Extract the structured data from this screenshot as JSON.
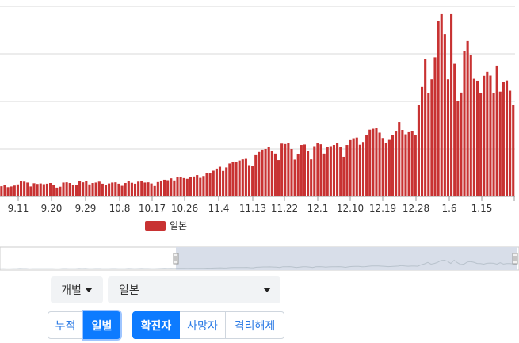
{
  "chart_data": {
    "type": "bar",
    "x_tick_labels": [
      "9.11",
      "9.20",
      "9.29",
      "10.8",
      "10.17",
      "10.26",
      "11.4",
      "11.13",
      "11.22",
      "12.1",
      "12.10",
      "12.19",
      "12.28",
      "1.6",
      "1.15"
    ],
    "series": [
      {
        "name": "일본",
        "color": "#c83232",
        "values": [
          440,
          480,
          400,
          430,
          470,
          520,
          650,
          640,
          600,
          430,
          570,
          540,
          560,
          530,
          550,
          580,
          500,
          380,
          420,
          600,
          610,
          580,
          490,
          500,
          650,
          610,
          660,
          520,
          580,
          600,
          640,
          550,
          500,
          560,
          600,
          610,
          550,
          460,
          580,
          650,
          590,
          550,
          640,
          670,
          600,
          610,
          560,
          450,
          620,
          680,
          720,
          700,
          780,
          690,
          840,
          830,
          790,
          760,
          840,
          860,
          920,
          800,
          880,
          1000,
          990,
          1110,
          1200,
          1280,
          1100,
          1250,
          1420,
          1480,
          1500,
          1550,
          1600,
          1620,
          1350,
          1320,
          1780,
          1920,
          2020,
          2050,
          2150,
          1950,
          1850,
          1570,
          2280,
          2260,
          2290,
          2050,
          1590,
          1830,
          2220,
          2240,
          1950,
          1600,
          2170,
          2300,
          2250,
          1850,
          2130,
          2170,
          2220,
          2300,
          2140,
          1710,
          2220,
          2430,
          2510,
          2540,
          2230,
          2350,
          2650,
          2880,
          2920,
          2960,
          2750,
          2520,
          2310,
          2440,
          2640,
          2800,
          3210,
          2870,
          2680,
          2770,
          2810,
          2640,
          3930,
          4720,
          5920,
          4470,
          5050,
          6000,
          7560,
          7860,
          7000,
          5050,
          7860,
          5720,
          4100,
          4480,
          6270,
          6700,
          6100,
          5070,
          4990,
          4450,
          5200,
          5370,
          5210,
          4470,
          5640,
          4520,
          4930,
          5000,
          4560,
          3930
        ]
      }
    ],
    "ylim": [
      0,
      8200
    ],
    "grid": true,
    "legend_position": "bottom-center"
  },
  "controls": {
    "mode_dropdown": "개별",
    "country_dropdown": "일본",
    "view_buttons": [
      "누적",
      "일별"
    ],
    "active_view": "일별",
    "metric_buttons": [
      "확진자",
      "사망자",
      "격리해제"
    ],
    "active_metric": "확진자"
  },
  "colors": {
    "bar": "#c83232",
    "primary": "#0d7bff",
    "navigator_fill": "#d8dee9"
  }
}
